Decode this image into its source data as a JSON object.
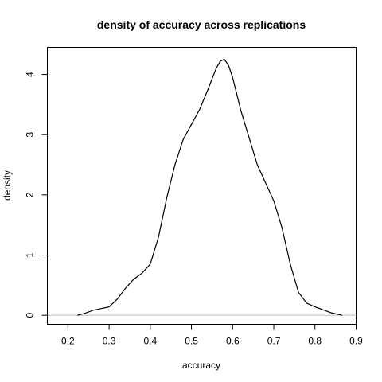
{
  "chart_data": {
    "type": "line",
    "title": "density of accuracy across replications",
    "xlabel": "accuracy",
    "ylabel": "density",
    "xlim": [
      0.15,
      0.9
    ],
    "ylim": [
      -0.15,
      4.45
    ],
    "x_ticks": [
      0.2,
      0.3,
      0.4,
      0.5,
      0.6,
      0.7,
      0.8,
      0.9
    ],
    "x_tick_labels": [
      "0.2",
      "0.3",
      "0.4",
      "0.5",
      "0.6",
      "0.7",
      "0.8",
      "0.9"
    ],
    "y_ticks": [
      0,
      1,
      2,
      3,
      4
    ],
    "y_tick_labels": [
      "0",
      "1",
      "2",
      "3",
      "4"
    ],
    "baseline": 0,
    "line_color": "#000000",
    "baseline_color": "#bebebe",
    "grid": false,
    "series": [
      {
        "x": [
          0.223,
          0.24,
          0.26,
          0.28,
          0.3,
          0.32,
          0.34,
          0.36,
          0.38,
          0.4,
          0.42,
          0.44,
          0.46,
          0.48,
          0.5,
          0.52,
          0.54,
          0.56,
          0.57,
          0.58,
          0.59,
          0.6,
          0.62,
          0.64,
          0.66,
          0.68,
          0.7,
          0.72,
          0.74,
          0.76,
          0.78,
          0.8,
          0.82,
          0.84,
          0.86,
          0.866
        ],
        "y": [
          0.0,
          0.03,
          0.08,
          0.11,
          0.14,
          0.27,
          0.45,
          0.6,
          0.7,
          0.85,
          1.3,
          1.95,
          2.5,
          2.92,
          3.17,
          3.42,
          3.75,
          4.1,
          4.22,
          4.25,
          4.15,
          3.95,
          3.4,
          2.95,
          2.5,
          2.2,
          1.9,
          1.45,
          0.85,
          0.38,
          0.2,
          0.14,
          0.09,
          0.04,
          0.01,
          0.0
        ]
      }
    ]
  }
}
